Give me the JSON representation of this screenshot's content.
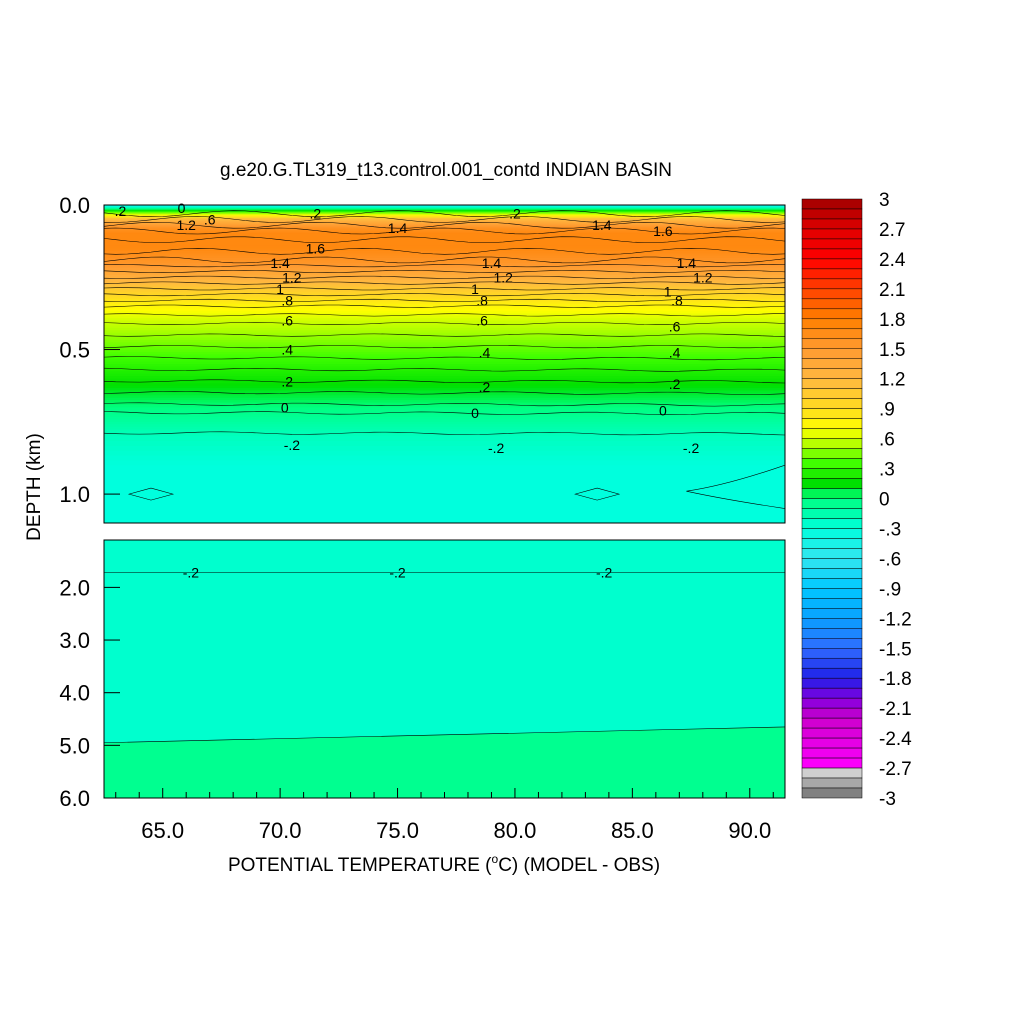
{
  "chart_data": {
    "type": "heatmap",
    "title": "g.e20.G.TL319_t13.control.001_contd INDIAN BASIN",
    "xlabel_parts": [
      "POTENTIAL TEMPERATURE (",
      "o",
      "C) (MODEL - OBS)"
    ],
    "ylabel": "DEPTH (km)",
    "xlim": [
      62.5,
      91.5
    ],
    "x_ticks": [
      65,
      70,
      75,
      80,
      85,
      90
    ],
    "x_tick_labels": [
      "65.0",
      "70.0",
      "75.0",
      "80.0",
      "85.0",
      "90.0"
    ],
    "upper_panel": {
      "ylim": [
        0.0,
        1.1
      ],
      "y_ticks": [
        0.0,
        0.5,
        1.0
      ],
      "y_tick_labels": [
        "0.0",
        "0.5",
        "1.0"
      ]
    },
    "lower_panel": {
      "ylim": [
        1.1,
        6.0
      ],
      "y_ticks": [
        2.0,
        3.0,
        4.0,
        5.0,
        6.0
      ],
      "y_tick_labels": [
        "2.0",
        "3.0",
        "4.0",
        "5.0",
        "6.0"
      ]
    },
    "colorbar": {
      "min": -3,
      "max": 3,
      "step": 0.1,
      "tick_values": [
        3,
        2.7,
        2.4,
        2.1,
        1.8,
        1.5,
        1.2,
        0.9,
        0.6,
        0.3,
        0,
        -0.3,
        -0.6,
        -0.9,
        -1.2,
        -1.5,
        -1.8,
        -2.1,
        -2.4,
        -2.7,
        -3
      ],
      "tick_labels": [
        "3",
        "2.7",
        "2.4",
        "2.1",
        "1.8",
        "1.5",
        "1.2",
        ".9",
        ".6",
        ".3",
        "0",
        "-.3",
        "-.6",
        "-.9",
        "-1.2",
        "-1.5",
        "-1.8",
        "-2.1",
        "-2.4",
        "-2.7",
        "-3"
      ]
    },
    "profile": {
      "depth_km": [
        0.0,
        0.02,
        0.05,
        0.08,
        0.1,
        0.15,
        0.2,
        0.25,
        0.3,
        0.35,
        0.4,
        0.45,
        0.5,
        0.55,
        0.6,
        0.65,
        0.7,
        0.75,
        0.8,
        0.9,
        1.0,
        1.1
      ],
      "value": [
        -0.5,
        0.2,
        1.2,
        1.6,
        1.7,
        1.7,
        1.55,
        1.3,
        1.0,
        0.75,
        0.6,
        0.5,
        0.4,
        0.3,
        0.2,
        0.1,
        0.0,
        -0.1,
        -0.2,
        -0.3,
        -0.3,
        -0.3
      ]
    },
    "deep_layers": [
      {
        "from_km": 1.1,
        "to_km": 5.0,
        "value": -0.25
      },
      {
        "from_km": 5.0,
        "to_km": 6.0,
        "value": -0.05
      }
    ],
    "contour_labels": [
      {
        "text": ".2",
        "x": 63.2,
        "depth": 0.02,
        "panel": "upper"
      },
      {
        "text": "0",
        "x": 65.8,
        "depth": 0.01,
        "panel": "upper"
      },
      {
        "text": "1.2",
        "x": 66.0,
        "depth": 0.07,
        "panel": "upper"
      },
      {
        "text": ".6",
        "x": 67.0,
        "depth": 0.05,
        "panel": "upper"
      },
      {
        "text": ".2",
        "x": 71.5,
        "depth": 0.03,
        "panel": "upper"
      },
      {
        "text": "1.4",
        "x": 75.0,
        "depth": 0.08,
        "panel": "upper"
      },
      {
        "text": ".2",
        "x": 80.0,
        "depth": 0.03,
        "panel": "upper"
      },
      {
        "text": "1.4",
        "x": 83.7,
        "depth": 0.07,
        "panel": "upper"
      },
      {
        "text": "1.6",
        "x": 86.3,
        "depth": 0.09,
        "panel": "upper"
      },
      {
        "text": "1.6",
        "x": 71.5,
        "depth": 0.15,
        "panel": "upper"
      },
      {
        "text": "1.4",
        "x": 70.0,
        "depth": 0.2,
        "panel": "upper"
      },
      {
        "text": "1.2",
        "x": 70.5,
        "depth": 0.25,
        "panel": "upper"
      },
      {
        "text": "1",
        "x": 70.0,
        "depth": 0.29,
        "panel": "upper"
      },
      {
        "text": ".8",
        "x": 70.3,
        "depth": 0.33,
        "panel": "upper"
      },
      {
        "text": ".6",
        "x": 70.3,
        "depth": 0.4,
        "panel": "upper"
      },
      {
        "text": ".4",
        "x": 70.3,
        "depth": 0.5,
        "panel": "upper"
      },
      {
        "text": ".2",
        "x": 70.3,
        "depth": 0.61,
        "panel": "upper"
      },
      {
        "text": "0",
        "x": 70.2,
        "depth": 0.7,
        "panel": "upper"
      },
      {
        "text": "-.2",
        "x": 70.5,
        "depth": 0.83,
        "panel": "upper"
      },
      {
        "text": "1.4",
        "x": 79.0,
        "depth": 0.2,
        "panel": "upper"
      },
      {
        "text": "1.2",
        "x": 79.5,
        "depth": 0.25,
        "panel": "upper"
      },
      {
        "text": "1",
        "x": 78.3,
        "depth": 0.29,
        "panel": "upper"
      },
      {
        "text": ".8",
        "x": 78.6,
        "depth": 0.33,
        "panel": "upper"
      },
      {
        "text": ".6",
        "x": 78.6,
        "depth": 0.4,
        "panel": "upper"
      },
      {
        "text": ".4",
        "x": 78.7,
        "depth": 0.51,
        "panel": "upper"
      },
      {
        "text": ".2",
        "x": 78.7,
        "depth": 0.63,
        "panel": "upper"
      },
      {
        "text": "0",
        "x": 78.3,
        "depth": 0.72,
        "panel": "upper"
      },
      {
        "text": "-.2",
        "x": 79.2,
        "depth": 0.84,
        "panel": "upper"
      },
      {
        "text": "1.4",
        "x": 87.3,
        "depth": 0.2,
        "panel": "upper"
      },
      {
        "text": "1.2",
        "x": 88.0,
        "depth": 0.25,
        "panel": "upper"
      },
      {
        "text": "1",
        "x": 86.5,
        "depth": 0.3,
        "panel": "upper"
      },
      {
        "text": ".8",
        "x": 86.9,
        "depth": 0.33,
        "panel": "upper"
      },
      {
        "text": ".6",
        "x": 86.8,
        "depth": 0.42,
        "panel": "upper"
      },
      {
        "text": ".4",
        "x": 86.8,
        "depth": 0.51,
        "panel": "upper"
      },
      {
        "text": ".2",
        "x": 86.8,
        "depth": 0.62,
        "panel": "upper"
      },
      {
        "text": "0",
        "x": 86.3,
        "depth": 0.71,
        "panel": "upper"
      },
      {
        "text": "-.2",
        "x": 87.5,
        "depth": 0.84,
        "panel": "upper"
      },
      {
        "text": "-.2",
        "x": 66.2,
        "depth": 1.72,
        "panel": "lower"
      },
      {
        "text": "-.2",
        "x": 75.0,
        "depth": 1.72,
        "panel": "lower"
      },
      {
        "text": "-.2",
        "x": 83.8,
        "depth": 1.72,
        "panel": "lower"
      }
    ]
  }
}
